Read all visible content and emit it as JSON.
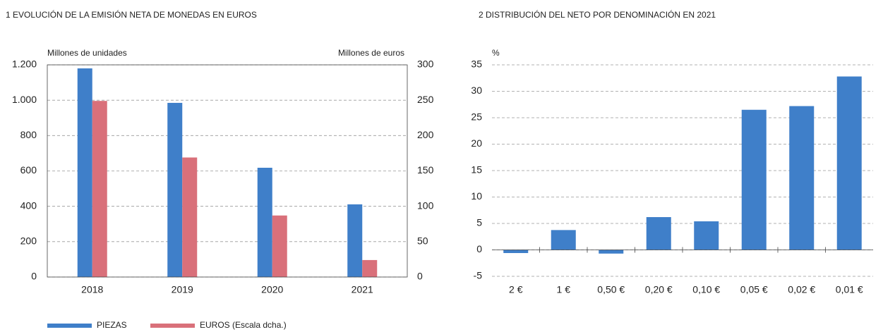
{
  "chart_data": [
    {
      "type": "bar",
      "title": "1 EVOLUCIÓN DE LA EMISIÓN NETA DE MONEDAS EN EUROS",
      "y_label": "Millones de unidades",
      "y2_label": "Millones de euros",
      "categories": [
        "2018",
        "2019",
        "2020",
        "2021"
      ],
      "series": [
        {
          "name": "PIEZAS",
          "color": "#3f7fc9",
          "values": [
            1180,
            985,
            618,
            411
          ]
        },
        {
          "name": "EUROS (Escala dcha.)",
          "color": "#d9707a",
          "values": [
            249,
            169,
            87,
            24
          ],
          "axis": "y2"
        }
      ],
      "ylim": [
        0,
        1200
      ],
      "yticks": [
        0,
        200,
        400,
        600,
        800,
        {
          "value": 1000,
          "label": "1.000"
        },
        {
          "value": 1200,
          "label": "1.200"
        }
      ],
      "y2lim": [
        0,
        300
      ],
      "y2ticks": [
        0,
        50,
        100,
        150,
        200,
        250,
        300
      ],
      "grid": true,
      "legend": "bottom-left"
    },
    {
      "type": "bar",
      "title": "2 DISTRIBUCIÓN DEL NETO POR DENOMINACIÓN EN 2021",
      "y_label": "%",
      "categories": [
        "2 €",
        "1 €",
        "0,50 €",
        "0,20 €",
        "0,10 €",
        "0,05 €",
        "0,02 €",
        "0,01 €"
      ],
      "series": [
        {
          "color": "#3f7fc9",
          "values": [
            -0.6,
            3.75,
            -0.7,
            6.2,
            5.4,
            26.5,
            27.2,
            32.8
          ]
        }
      ],
      "ylim": [
        -5,
        35
      ],
      "yticks": [
        -5,
        0,
        5,
        10,
        15,
        20,
        25,
        30,
        35
      ],
      "grid": true
    }
  ]
}
